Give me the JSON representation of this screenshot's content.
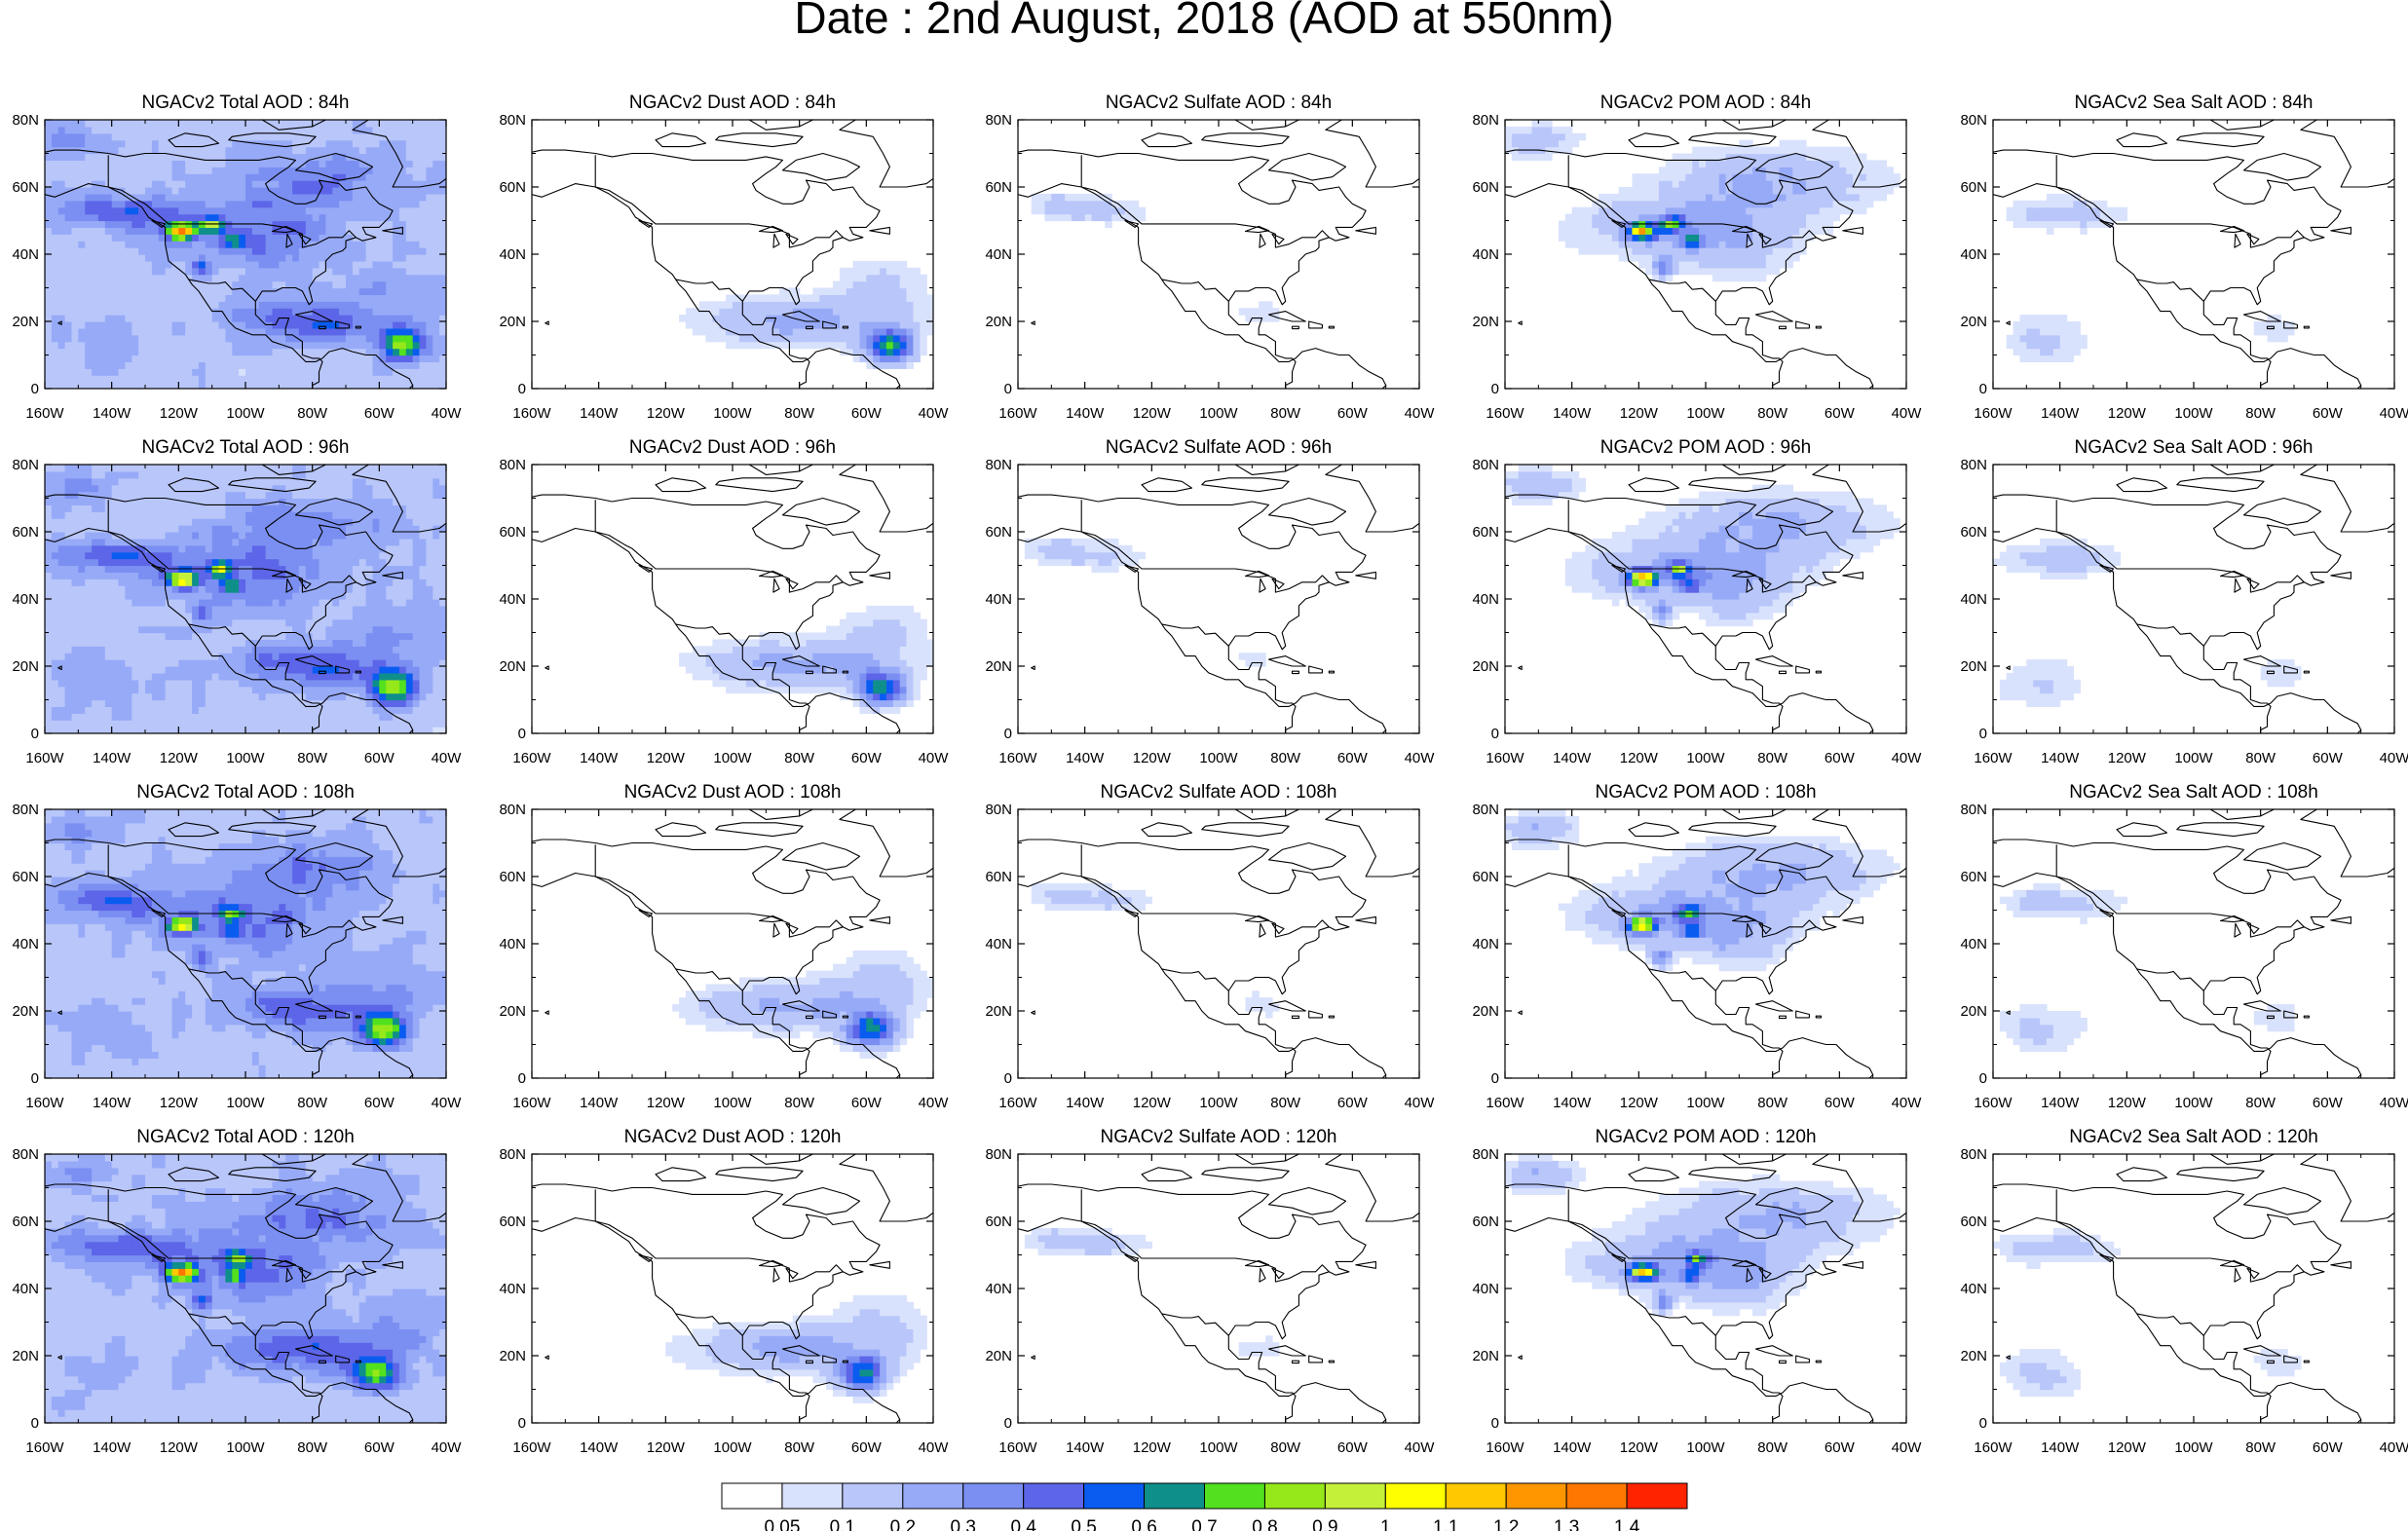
{
  "title": "Date : 2nd August, 2018 (AOD at 550nm)",
  "map_axes": {
    "x_ticks": [
      "160W",
      "140W",
      "120W",
      "100W",
      "80W",
      "60W",
      "40W"
    ],
    "y_ticks": [
      "80N",
      "60N",
      "40N",
      "20N",
      "0"
    ],
    "lon_range": [
      -160,
      -40
    ],
    "lat_range": [
      0,
      80
    ]
  },
  "panels": [
    [
      {
        "title": "NGACv2 Total AOD : 84h",
        "species": "total",
        "lead": 84
      },
      {
        "title": "NGACv2 Dust AOD : 84h",
        "species": "dust",
        "lead": 84
      },
      {
        "title": "NGACv2 Sulfate AOD : 84h",
        "species": "sulfate",
        "lead": 84
      },
      {
        "title": "NGACv2 POM AOD : 84h",
        "species": "pom",
        "lead": 84
      },
      {
        "title": "NGACv2 Sea Salt AOD : 84h",
        "species": "seasalt",
        "lead": 84
      }
    ],
    [
      {
        "title": "NGACv2 Total AOD : 96h",
        "species": "total",
        "lead": 96
      },
      {
        "title": "NGACv2 Dust AOD : 96h",
        "species": "dust",
        "lead": 96
      },
      {
        "title": "NGACv2 Sulfate AOD : 96h",
        "species": "sulfate",
        "lead": 96
      },
      {
        "title": "NGACv2 POM AOD : 96h",
        "species": "pom",
        "lead": 96
      },
      {
        "title": "NGACv2 Sea Salt AOD : 96h",
        "species": "seasalt",
        "lead": 96
      }
    ],
    [
      {
        "title": "NGACv2 Total AOD : 108h",
        "species": "total",
        "lead": 108
      },
      {
        "title": "NGACv2 Dust AOD : 108h",
        "species": "dust",
        "lead": 108
      },
      {
        "title": "NGACv2 Sulfate AOD : 108h",
        "species": "sulfate",
        "lead": 108
      },
      {
        "title": "NGACv2 POM AOD : 108h",
        "species": "pom",
        "lead": 108
      },
      {
        "title": "NGACv2 Sea Salt AOD : 108h",
        "species": "seasalt",
        "lead": 108
      }
    ],
    [
      {
        "title": "NGACv2 Total AOD : 120h",
        "species": "total",
        "lead": 120
      },
      {
        "title": "NGACv2 Dust AOD : 120h",
        "species": "dust",
        "lead": 120
      },
      {
        "title": "NGACv2 Sulfate AOD : 120h",
        "species": "sulfate",
        "lead": 120
      },
      {
        "title": "NGACv2 POM AOD : 120h",
        "species": "pom",
        "lead": 120
      },
      {
        "title": "NGACv2 Sea Salt  AOD : 120h",
        "species": "seasalt",
        "lead": 120
      }
    ]
  ],
  "colorbar": {
    "labels": [
      "0.05",
      "0.1",
      "0.2",
      "0.3",
      "0.4",
      "0.5",
      "0.6",
      "0.7",
      "0.8",
      "0.9",
      "1",
      "1.1",
      "1.2",
      "1.3",
      "1.4"
    ],
    "colors": [
      "#ffffff",
      "#d9e2fc",
      "#b8c6fa",
      "#97aaf7",
      "#7b8ff2",
      "#5d65e8",
      "#0a5cf0",
      "#0f8f8a",
      "#52e01f",
      "#96e81a",
      "#c4f03a",
      "#ffff00",
      "#ffc800",
      "#ff9600",
      "#ff7700",
      "#ff2400"
    ]
  }
}
